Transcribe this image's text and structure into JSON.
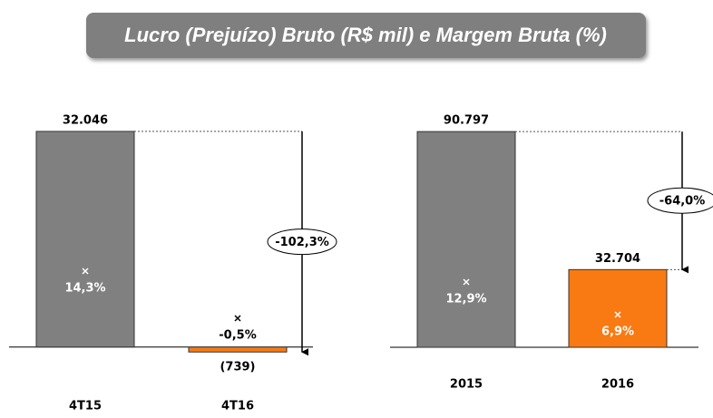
{
  "title": "Lucro (Prejuízo) Bruto (R$ mil) e Margem  Bruta (%)",
  "chart_data": [
    {
      "type": "bar",
      "categories": [
        "4T15",
        "4T16"
      ],
      "values": [
        32046,
        -739
      ],
      "value_labels": [
        "32.046",
        "(739)"
      ],
      "colors": [
        "#808080",
        "#f97a12"
      ],
      "margins": [
        14.3,
        -0.5
      ],
      "margin_labels": [
        "14,3%",
        "-0,5%"
      ],
      "change": {
        "value": -102.3,
        "label": "-102,3%"
      },
      "ylim": [
        -3000,
        35000
      ]
    },
    {
      "type": "bar",
      "categories": [
        "2015",
        "2016"
      ],
      "values": [
        90797,
        32704
      ],
      "value_labels": [
        "90.797",
        "32.704"
      ],
      "colors": [
        "#808080",
        "#f97a12"
      ],
      "margins": [
        12.9,
        6.9
      ],
      "margin_labels": [
        "12,9%",
        "6,9%"
      ],
      "change": {
        "value": -64.0,
        "label": "-64,0%"
      },
      "ylim": [
        -8000,
        100000
      ]
    }
  ]
}
